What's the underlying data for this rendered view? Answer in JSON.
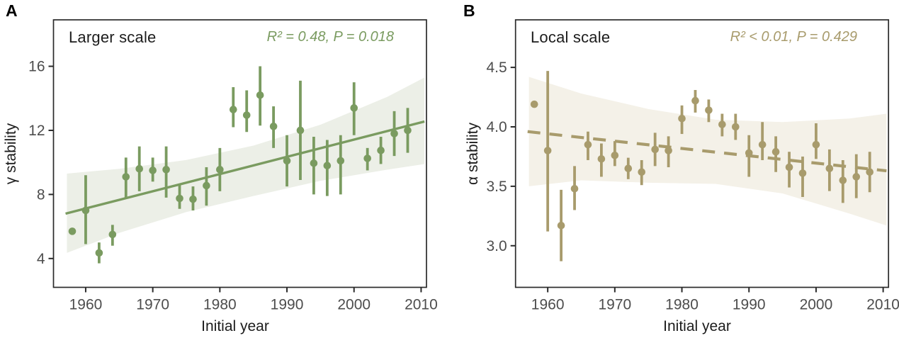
{
  "chart_data": [
    {
      "type": "scatter",
      "panel": "A",
      "title": "Larger scale",
      "annotation": "R² = 0.48, P = 0.018",
      "xlabel": "Initial year",
      "ylabel": "γ stability",
      "colors": {
        "accent": "#7a9b60",
        "band": "#ecefe7"
      },
      "xlim": [
        1955.2,
        2010.8
      ],
      "ylim": [
        2.2,
        18.9
      ],
      "x_ticks": [
        {
          "value": 1960,
          "label": "1960"
        },
        {
          "value": 1970,
          "label": "1970"
        },
        {
          "value": 1980,
          "label": "1980"
        },
        {
          "value": 1990,
          "label": "1990"
        },
        {
          "value": 2000,
          "label": "2000"
        },
        {
          "value": 2010,
          "label": "2010"
        }
      ],
      "y_ticks": [
        {
          "value": 4,
          "label": "4"
        },
        {
          "value": 8,
          "label": "8"
        },
        {
          "value": 12,
          "label": "12"
        },
        {
          "value": 16,
          "label": "16"
        }
      ],
      "years": [
        1958,
        1960,
        1962,
        1964,
        1966,
        1968,
        1970,
        1972,
        1974,
        1976,
        1978,
        1980,
        1982,
        1984,
        1986,
        1988,
        1990,
        1992,
        1994,
        1996,
        1998,
        2000,
        2002,
        2004,
        2006,
        2008
      ],
      "values": [
        5.7,
        7.0,
        4.35,
        5.5,
        9.1,
        9.6,
        9.5,
        9.55,
        7.75,
        7.7,
        8.55,
        9.55,
        13.3,
        12.95,
        14.2,
        12.25,
        10.1,
        12.0,
        9.95,
        9.8,
        10.1,
        13.4,
        10.25,
        10.75,
        11.8,
        12.0
      ],
      "ci_low": [
        5.7,
        4.9,
        3.7,
        4.8,
        7.8,
        8.2,
        8.8,
        7.8,
        7.1,
        7.0,
        7.3,
        8.2,
        12.2,
        11.9,
        12.3,
        10.9,
        8.5,
        8.9,
        8.0,
        7.9,
        8.0,
        11.7,
        9.5,
        9.9,
        10.4,
        10.6
      ],
      "ci_high": [
        5.7,
        9.2,
        5.0,
        6.1,
        10.3,
        11.0,
        10.3,
        11.0,
        8.6,
        8.5,
        9.7,
        10.9,
        14.7,
        14.5,
        16.0,
        13.5,
        11.7,
        15.1,
        11.6,
        11.4,
        11.7,
        15.0,
        10.9,
        11.6,
        13.2,
        13.4
      ],
      "trend_line": {
        "style": "solid",
        "x": [
          1957.0,
          2010.5
        ],
        "y": [
          6.8,
          12.55
        ]
      },
      "confidence_band": {
        "x": [
          1957.2,
          1965,
          1975,
          1985,
          1995,
          2005,
          2010.5
        ],
        "top": [
          9.3,
          9.6,
          10.15,
          11.05,
          12.35,
          14.1,
          15.3
        ],
        "bottom": [
          4.35,
          5.6,
          6.9,
          7.9,
          8.85,
          9.55,
          9.9
        ]
      },
      "grid": "off",
      "legend": "none"
    },
    {
      "type": "scatter",
      "panel": "B",
      "title": "Local scale",
      "annotation": "R² < 0.01, P = 0.429",
      "xlabel": "Initial year",
      "ylabel": "α stability",
      "colors": {
        "accent": "#a89b6c",
        "band": "#f4f1e8"
      },
      "xlim": [
        1955.2,
        2010.8
      ],
      "ylim": [
        2.65,
        4.9
      ],
      "x_ticks": [
        {
          "value": 1960,
          "label": "1960"
        },
        {
          "value": 1970,
          "label": "1970"
        },
        {
          "value": 1980,
          "label": "1980"
        },
        {
          "value": 1990,
          "label": "1990"
        },
        {
          "value": 2000,
          "label": "2000"
        },
        {
          "value": 2010,
          "label": "2010"
        }
      ],
      "y_ticks": [
        {
          "value": 3.0,
          "label": "3.0"
        },
        {
          "value": 3.5,
          "label": "3.5"
        },
        {
          "value": 4.0,
          "label": "4.0"
        },
        {
          "value": 4.5,
          "label": "4.5"
        }
      ],
      "years": [
        1958,
        1960,
        1962,
        1964,
        1966,
        1968,
        1970,
        1972,
        1974,
        1976,
        1978,
        1980,
        1982,
        1984,
        1986,
        1988,
        1990,
        1992,
        1994,
        1996,
        1998,
        2000,
        2002,
        2004,
        2006,
        2008
      ],
      "values": [
        4.19,
        3.8,
        3.17,
        3.48,
        3.85,
        3.73,
        3.76,
        3.65,
        3.62,
        3.81,
        3.8,
        4.07,
        4.22,
        4.14,
        4.02,
        4.0,
        3.78,
        3.85,
        3.79,
        3.66,
        3.61,
        3.85,
        3.65,
        3.55,
        3.58,
        3.62
      ],
      "ci_low": [
        4.19,
        3.12,
        2.87,
        3.3,
        3.72,
        3.58,
        3.67,
        3.56,
        3.51,
        3.67,
        3.66,
        3.94,
        4.12,
        4.04,
        3.92,
        3.89,
        3.58,
        3.72,
        3.62,
        3.49,
        3.41,
        3.73,
        3.46,
        3.36,
        3.4,
        3.45
      ],
      "ci_high": [
        4.19,
        4.47,
        3.47,
        3.67,
        3.96,
        3.86,
        3.88,
        3.74,
        3.72,
        3.95,
        3.92,
        4.18,
        4.31,
        4.23,
        4.11,
        4.11,
        3.93,
        4.04,
        3.92,
        3.79,
        3.75,
        4.03,
        3.81,
        3.72,
        3.77,
        3.79
      ],
      "trend_line": {
        "style": "dashed",
        "x": [
          1957.0,
          2010.5
        ],
        "y": [
          3.96,
          3.63
        ]
      },
      "confidence_band": {
        "x": [
          1957.2,
          1965,
          1975,
          1985,
          1995,
          2005,
          2010.5
        ],
        "top": [
          4.42,
          4.28,
          4.15,
          4.06,
          4.04,
          4.07,
          4.11
        ],
        "bottom": [
          3.5,
          3.55,
          3.53,
          3.52,
          3.44,
          3.27,
          3.17
        ]
      },
      "grid": "off",
      "legend": "none"
    }
  ]
}
